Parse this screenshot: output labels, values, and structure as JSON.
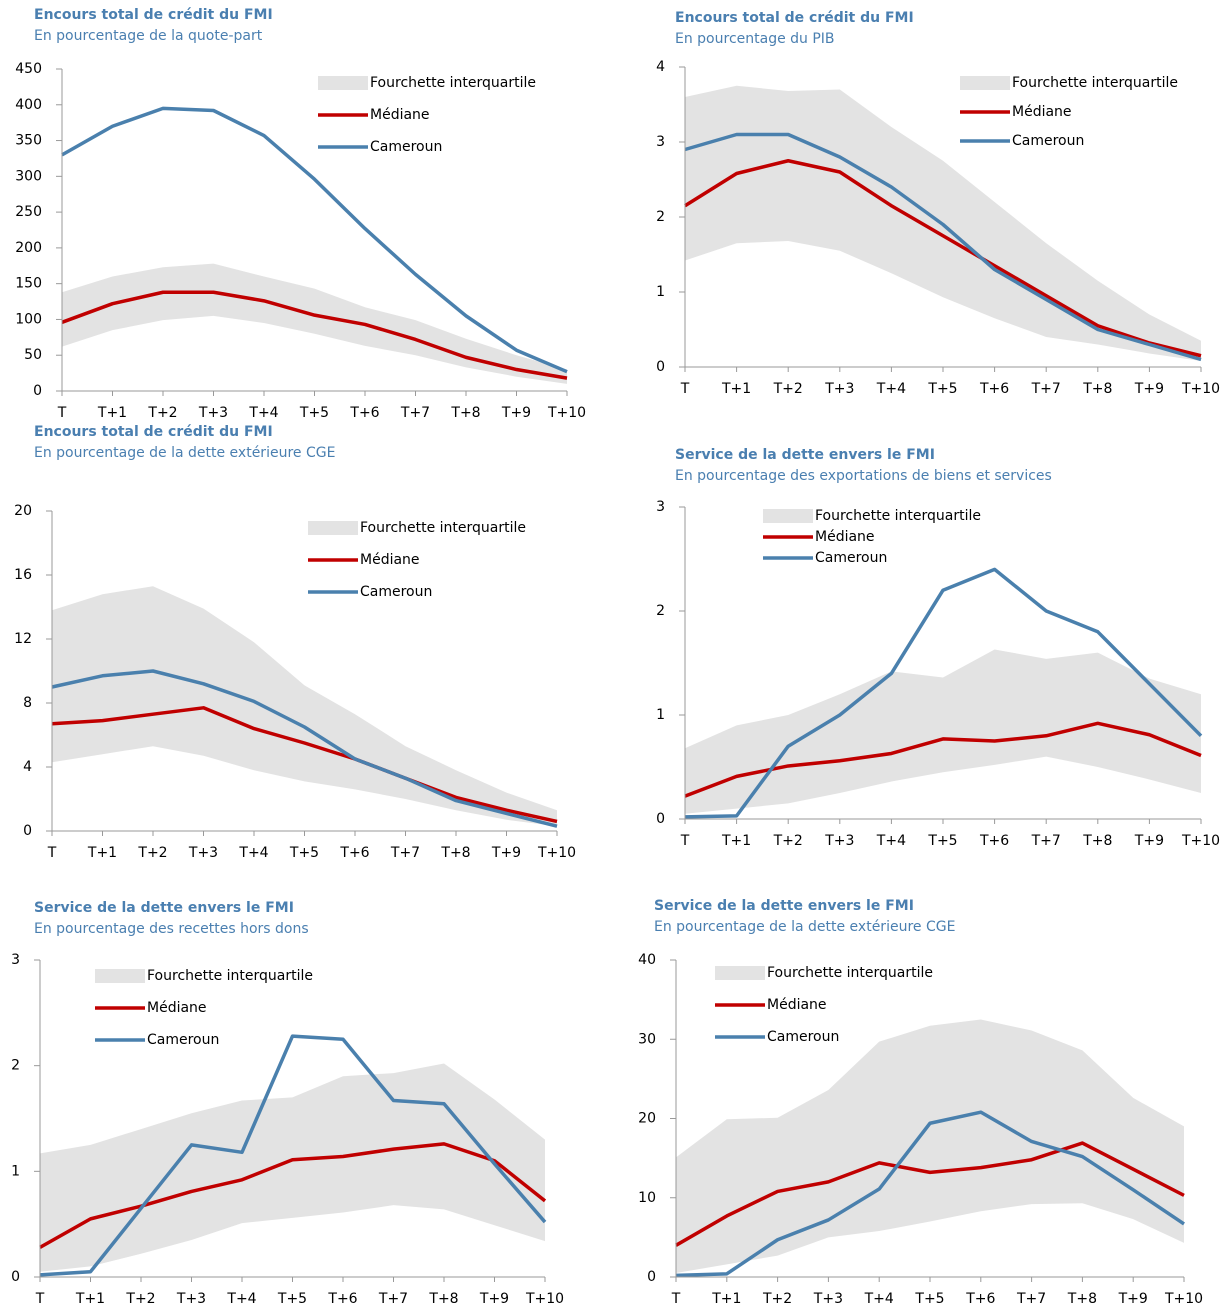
{
  "chart_data": [
    {
      "type": "line",
      "title": "Encours total de crédit du FMI",
      "subtitle": "En pourcentage de la quote-part",
      "categories": [
        "T",
        "T+1",
        "T+2",
        "T+3",
        "T+4",
        "T+5",
        "T+6",
        "T+7",
        "T+8",
        "T+9",
        "T+10"
      ],
      "ylim": [
        0,
        450
      ],
      "yticks": [
        0,
        50,
        100,
        150,
        200,
        250,
        300,
        350,
        400,
        450
      ],
      "legend": "upper right",
      "series": [
        {
          "name": "Fourchette interquartile",
          "color": "#e3e3e3",
          "high": [
            138,
            160,
            173,
            178,
            160,
            143,
            117,
            99,
            73,
            50,
            30
          ],
          "low": [
            62,
            85,
            99,
            105,
            95,
            80,
            63,
            50,
            33,
            20,
            10
          ]
        },
        {
          "name": "Médiane",
          "color": "#c00000",
          "values": [
            96,
            122,
            138,
            138,
            126,
            106,
            93,
            72,
            47,
            30,
            18
          ]
        },
        {
          "name": "Cameroun",
          "color": "#4a80ad",
          "values": [
            330,
            370,
            395,
            392,
            357,
            296,
            227,
            163,
            105,
            57,
            27
          ]
        }
      ]
    },
    {
      "type": "line",
      "title": "Encours total de crédit du FMI",
      "subtitle": "En pourcentage du PIB",
      "categories": [
        "T",
        "T+1",
        "T+2",
        "T+3",
        "T+4",
        "T+5",
        "T+6",
        "T+7",
        "T+8",
        "T+9",
        "T+10"
      ],
      "ylim": [
        0,
        4
      ],
      "yticks": [
        0,
        1,
        2,
        3,
        4
      ],
      "legend": "upper right",
      "series": [
        {
          "name": "Fourchette interquartile",
          "color": "#e3e3e3",
          "high": [
            3.6,
            3.75,
            3.68,
            3.7,
            3.2,
            2.75,
            2.2,
            1.65,
            1.15,
            0.7,
            0.35
          ],
          "low": [
            1.42,
            1.65,
            1.68,
            1.55,
            1.25,
            0.93,
            0.65,
            0.4,
            0.3,
            0.18,
            0.08
          ]
        },
        {
          "name": "Médiane",
          "color": "#c00000",
          "values": [
            2.15,
            2.58,
            2.75,
            2.6,
            2.15,
            1.75,
            1.35,
            0.95,
            0.55,
            0.32,
            0.15
          ]
        },
        {
          "name": "Cameroun",
          "color": "#4a80ad",
          "values": [
            2.9,
            3.1,
            3.1,
            2.8,
            2.4,
            1.9,
            1.3,
            0.9,
            0.5,
            0.3,
            0.1
          ]
        }
      ]
    },
    {
      "type": "line",
      "title": "Encours total de crédit du FMI",
      "subtitle": "En pourcentage de la dette extérieure CGE",
      "categories": [
        "T",
        "T+1",
        "T+2",
        "T+3",
        "T+4",
        "T+5",
        "T+6",
        "T+7",
        "T+8",
        "T+9",
        "T+10"
      ],
      "ylim": [
        0,
        20
      ],
      "yticks": [
        0,
        4,
        8,
        12,
        16,
        20
      ],
      "legend": "upper right",
      "series": [
        {
          "name": "Fourchette interquartile",
          "color": "#e3e3e3",
          "high": [
            13.8,
            14.8,
            15.3,
            13.9,
            11.8,
            9.1,
            7.3,
            5.3,
            3.8,
            2.4,
            1.3
          ],
          "low": [
            4.3,
            4.8,
            5.3,
            4.7,
            3.8,
            3.1,
            2.6,
            2.0,
            1.3,
            0.7,
            0.3
          ]
        },
        {
          "name": "Médiane",
          "color": "#c00000",
          "values": [
            6.7,
            6.9,
            7.3,
            7.7,
            6.4,
            5.5,
            4.5,
            3.3,
            2.1,
            1.3,
            0.6
          ]
        },
        {
          "name": "Cameroun",
          "color": "#4a80ad",
          "values": [
            9.0,
            9.7,
            10.0,
            9.2,
            8.1,
            6.5,
            4.5,
            3.3,
            1.9,
            1.1,
            0.3
          ]
        }
      ]
    },
    {
      "type": "line",
      "title": "Service de la dette envers le FMI",
      "subtitle": "En pourcentage des exportations de biens et services",
      "categories": [
        "T",
        "T+1",
        "T+2",
        "T+3",
        "T+4",
        "T+5",
        "T+6",
        "T+7",
        "T+8",
        "T+9",
        "T+10"
      ],
      "ylim": [
        0,
        3
      ],
      "yticks": [
        0,
        1,
        2,
        3
      ],
      "legend": "upper left",
      "series": [
        {
          "name": "Fourchette interquartile",
          "color": "#e3e3e3",
          "high": [
            0.68,
            0.9,
            1.0,
            1.2,
            1.42,
            1.36,
            1.63,
            1.54,
            1.6,
            1.35,
            1.2
          ],
          "low": [
            0.05,
            0.1,
            0.15,
            0.25,
            0.36,
            0.45,
            0.52,
            0.6,
            0.5,
            0.38,
            0.25
          ]
        },
        {
          "name": "Médiane",
          "color": "#c00000",
          "values": [
            0.22,
            0.41,
            0.51,
            0.56,
            0.63,
            0.77,
            0.75,
            0.8,
            0.92,
            0.81,
            0.61
          ]
        },
        {
          "name": "Cameroun",
          "color": "#4a80ad",
          "values": [
            0.02,
            0.03,
            0.7,
            1.0,
            1.4,
            2.2,
            2.4,
            2.0,
            1.8,
            1.3,
            0.8
          ]
        }
      ]
    },
    {
      "type": "line",
      "title": "Service de la dette envers le FMI",
      "subtitle": "En pourcentage des recettes hors dons",
      "categories": [
        "T",
        "T+1",
        "T+2",
        "T+3",
        "T+4",
        "T+5",
        "T+6",
        "T+7",
        "T+8",
        "T+9",
        "T+10"
      ],
      "ylim": [
        0,
        3
      ],
      "yticks": [
        0,
        1,
        2,
        3
      ],
      "legend": "upper left",
      "series": [
        {
          "name": "Fourchette interquartile",
          "color": "#e3e3e3",
          "high": [
            1.17,
            1.25,
            1.4,
            1.55,
            1.67,
            1.7,
            1.9,
            1.93,
            2.02,
            1.68,
            1.3
          ],
          "low": [
            0.05,
            0.1,
            0.22,
            0.35,
            0.51,
            0.56,
            0.61,
            0.68,
            0.64,
            0.49,
            0.34
          ]
        },
        {
          "name": "Médiane",
          "color": "#c00000",
          "values": [
            0.28,
            0.55,
            0.67,
            0.81,
            0.92,
            1.11,
            1.14,
            1.21,
            1.26,
            1.1,
            0.72
          ]
        },
        {
          "name": "Cameroun",
          "color": "#4a80ad",
          "values": [
            0.02,
            0.05,
            0.65,
            1.25,
            1.18,
            2.28,
            2.25,
            1.67,
            1.64,
            1.07,
            0.52
          ]
        }
      ]
    },
    {
      "type": "line",
      "title": "Service de la dette envers le FMI",
      "subtitle": "En pourcentage de la dette extérieure CGE",
      "categories": [
        "T",
        "T+1",
        "T+2",
        "T+3",
        "T+4",
        "T+5",
        "T+6",
        "T+7",
        "T+8",
        "T+9",
        "T+10"
      ],
      "ylim": [
        0,
        40
      ],
      "yticks": [
        0,
        10,
        20,
        30,
        40
      ],
      "legend": "upper left",
      "series": [
        {
          "name": "Fourchette interquartile",
          "color": "#e3e3e3",
          "high": [
            15.1,
            19.9,
            20.1,
            23.6,
            29.7,
            31.7,
            32.5,
            31.1,
            28.6,
            22.6,
            19.0
          ],
          "low": [
            0.5,
            1.6,
            2.7,
            5.0,
            5.8,
            7.0,
            8.3,
            9.2,
            9.3,
            7.3,
            4.3
          ]
        },
        {
          "name": "Médiane",
          "color": "#c00000",
          "values": [
            4.0,
            7.7,
            10.8,
            12.0,
            14.4,
            13.2,
            13.8,
            14.8,
            16.9,
            13.6,
            10.3
          ]
        },
        {
          "name": "Cameroun",
          "color": "#4a80ad",
          "values": [
            0.2,
            0.4,
            4.7,
            7.2,
            11.1,
            19.4,
            20.8,
            17.1,
            15.2,
            11,
            6.7
          ]
        }
      ]
    }
  ]
}
